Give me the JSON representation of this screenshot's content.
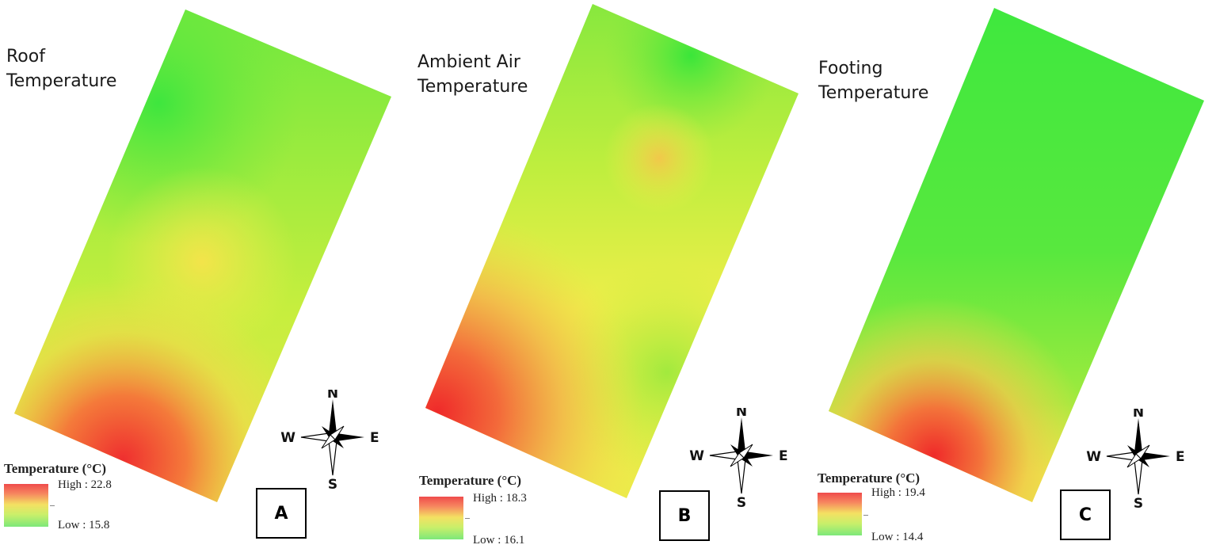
{
  "panels": [
    {
      "id": "A",
      "title": [
        "Roof",
        "Temperature"
      ],
      "legend": {
        "title": "Temperature (°C)",
        "high": "High : 22.8",
        "low": "Low : 15.8"
      },
      "label": "A"
    },
    {
      "id": "B",
      "title": [
        "Ambient Air",
        "Temperature"
      ],
      "legend": {
        "title": "Temperature (°C)",
        "high": "High : 18.3",
        "low": "Low : 16.1"
      },
      "label": "B"
    },
    {
      "id": "C",
      "title": [
        "Footing",
        "Temperature"
      ],
      "legend": {
        "title": "Temperature (°C)",
        "high": "High : 19.4",
        "low": "Low : 14.4"
      },
      "label": "C"
    }
  ],
  "compass": {
    "n": "N",
    "s": "S",
    "e": "E",
    "w": "W"
  },
  "colors": {
    "high": "#ef4b4b",
    "mid": "#f4e062",
    "low": "#3be83b"
  }
}
